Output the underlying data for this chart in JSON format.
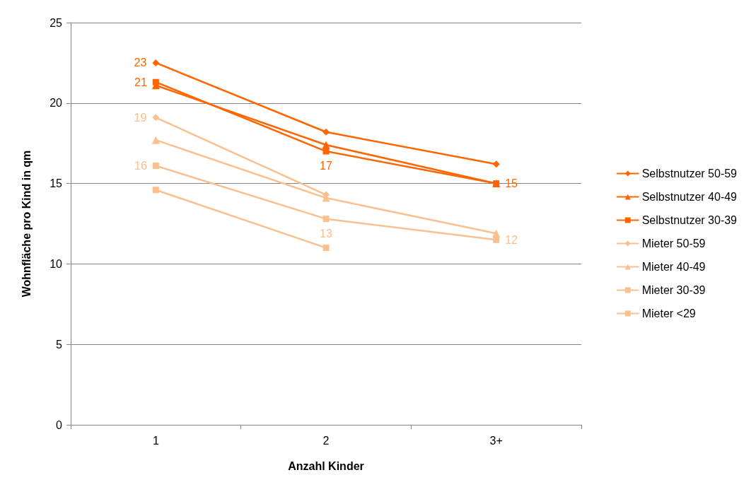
{
  "chart_data": {
    "type": "line",
    "xlabel": "Anzahl Kinder",
    "ylabel": "Wohnfläche pro Kind in qm",
    "categories": [
      "1",
      "2",
      "3+"
    ],
    "series": [
      {
        "name": "Selbstnutzer 50-59",
        "color": "#ff6600",
        "marker": "diamond",
        "values": [
          22.5,
          18.2,
          16.2
        ],
        "value_labels": [
          "23",
          null,
          null
        ]
      },
      {
        "name": "Selbstnutzer 40-49",
        "color": "#ff6600",
        "marker": "triangle",
        "values": [
          21.1,
          17.4,
          15.0
        ],
        "value_labels": [
          null,
          null,
          null
        ]
      },
      {
        "name": "Selbstnutzer 30-39",
        "color": "#ff6600",
        "marker": "square",
        "values": [
          21.3,
          17.0,
          15.0
        ],
        "value_labels": [
          "21",
          "17",
          "15"
        ]
      },
      {
        "name": "Mieter 50-59",
        "color": "#fac090",
        "marker": "diamond",
        "values": [
          19.1,
          14.3,
          null
        ],
        "value_labels": [
          "19",
          null,
          null
        ]
      },
      {
        "name": "Mieter 40-49",
        "color": "#fac090",
        "marker": "triangle",
        "values": [
          17.7,
          14.1,
          11.9
        ],
        "value_labels": [
          null,
          null,
          null
        ]
      },
      {
        "name": "Mieter 30-39",
        "color": "#fac090",
        "marker": "square",
        "values": [
          16.1,
          12.8,
          11.5
        ],
        "value_labels": [
          "16",
          "13",
          "12"
        ]
      },
      {
        "name": "Mieter <29",
        "color": "#fac090",
        "marker": "square",
        "values": [
          14.6,
          11.0,
          null
        ],
        "value_labels": [
          null,
          null,
          null
        ]
      }
    ],
    "ylim": [
      0,
      25
    ],
    "yticks": [
      0,
      5,
      10,
      15,
      20,
      25
    ],
    "grid": "y",
    "legend": "right",
    "line_style": "solid"
  }
}
